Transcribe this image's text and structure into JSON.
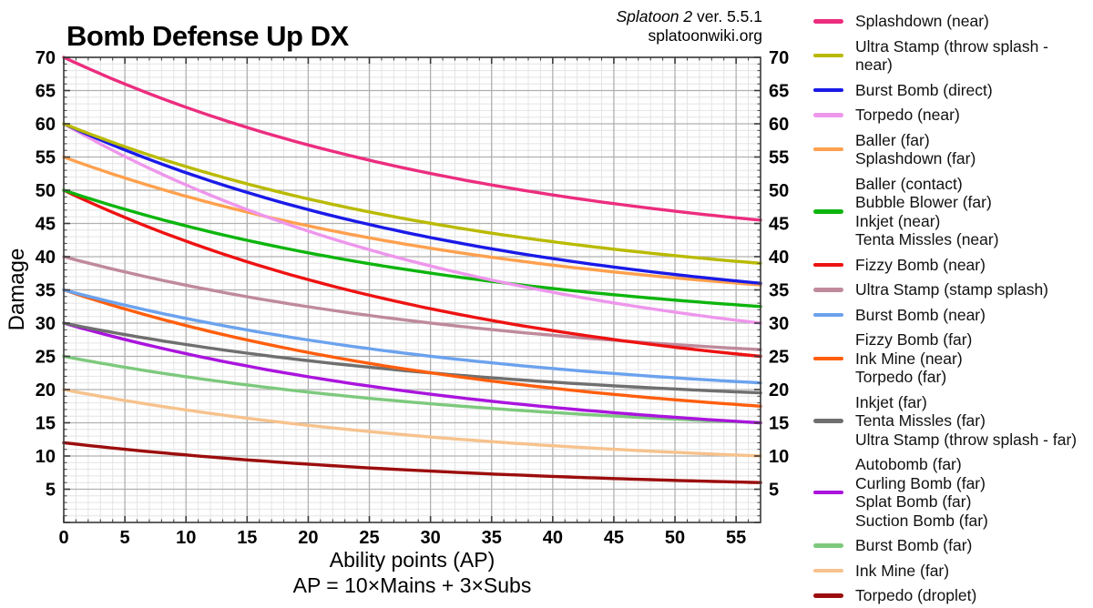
{
  "title": "Bomb Defense Up DX",
  "credit": {
    "game_italic": "Splatoon 2",
    "version": " ver. 5.5.1",
    "site": "splatoonwiki.org"
  },
  "chart_data": {
    "type": "line",
    "title": "Bomb Defense Up DX",
    "xlabel": "Ability points (AP)",
    "xlabel_formula": "AP = 10×Mains + 3×Subs",
    "ylabel": "Damage",
    "xlim": [
      0,
      57
    ],
    "ylim": [
      0,
      70
    ],
    "x_ticks": [
      0,
      5,
      10,
      15,
      20,
      25,
      30,
      35,
      40,
      45,
      50,
      55
    ],
    "y_ticks": [
      5,
      10,
      15,
      20,
      25,
      30,
      35,
      40,
      45,
      50,
      55,
      60,
      65,
      70
    ],
    "grid": {
      "minor_step": 1,
      "major_step": 5,
      "on": true
    },
    "legend_position": "right",
    "curve_decay_k": 1.6,
    "series": [
      {
        "labels": [
          "Splashdown (near)"
        ],
        "color": "#EC2D7E",
        "start": 70,
        "end": 45.5
      },
      {
        "labels": [
          "Ultra Stamp (throw splash - near)"
        ],
        "color": "#B9BA00",
        "start": 60,
        "end": 39
      },
      {
        "labels": [
          "Burst Bomb (direct)"
        ],
        "color": "#1A1AE8",
        "start": 60,
        "end": 36
      },
      {
        "labels": [
          "Torpedo (near)"
        ],
        "color": "#EE96EC",
        "start": 60,
        "end": 30
      },
      {
        "labels": [
          "Baller (far)",
          "Splashdown (far)"
        ],
        "color": "#FFA04D",
        "start": 55,
        "end": 35.75
      },
      {
        "labels": [
          "Baller (contact)",
          "Bubble Blower (far)",
          "Inkjet (near)",
          "Tenta Missles (near)"
        ],
        "color": "#0DB50D",
        "start": 50,
        "end": 32.5
      },
      {
        "labels": [
          "Fizzy Bomb (near)"
        ],
        "color": "#EE1212",
        "start": 50,
        "end": 25
      },
      {
        "labels": [
          "Ultra Stamp (stamp splash)"
        ],
        "color": "#BF8A9B",
        "start": 40,
        "end": 26
      },
      {
        "labels": [
          "Burst Bomb (near)"
        ],
        "color": "#6BA2EE",
        "start": 35,
        "end": 21
      },
      {
        "labels": [
          "Fizzy Bomb (far)",
          "Ink Mine (near)",
          "Torpedo (far)"
        ],
        "color": "#FF5E0D",
        "start": 35,
        "end": 17.5
      },
      {
        "labels": [
          "Inkjet (far)",
          "Tenta Missles (far)",
          "Ultra Stamp (throw splash - far)"
        ],
        "color": "#6F6F6F",
        "start": 30,
        "end": 19.5
      },
      {
        "labels": [
          "Autobomb (far)",
          "Curling Bomb (far)",
          "Splat Bomb (far)",
          "Suction Bomb (far)"
        ],
        "color": "#AA14DD",
        "start": 30,
        "end": 15
      },
      {
        "labels": [
          "Burst Bomb (far)"
        ],
        "color": "#7DC97D",
        "start": 25,
        "end": 15
      },
      {
        "labels": [
          "Ink Mine (far)"
        ],
        "color": "#F6C28D",
        "start": 20,
        "end": 10
      },
      {
        "labels": [
          "Torpedo (droplet)"
        ],
        "color": "#9C0D0D",
        "start": 12,
        "end": 6
      }
    ]
  }
}
